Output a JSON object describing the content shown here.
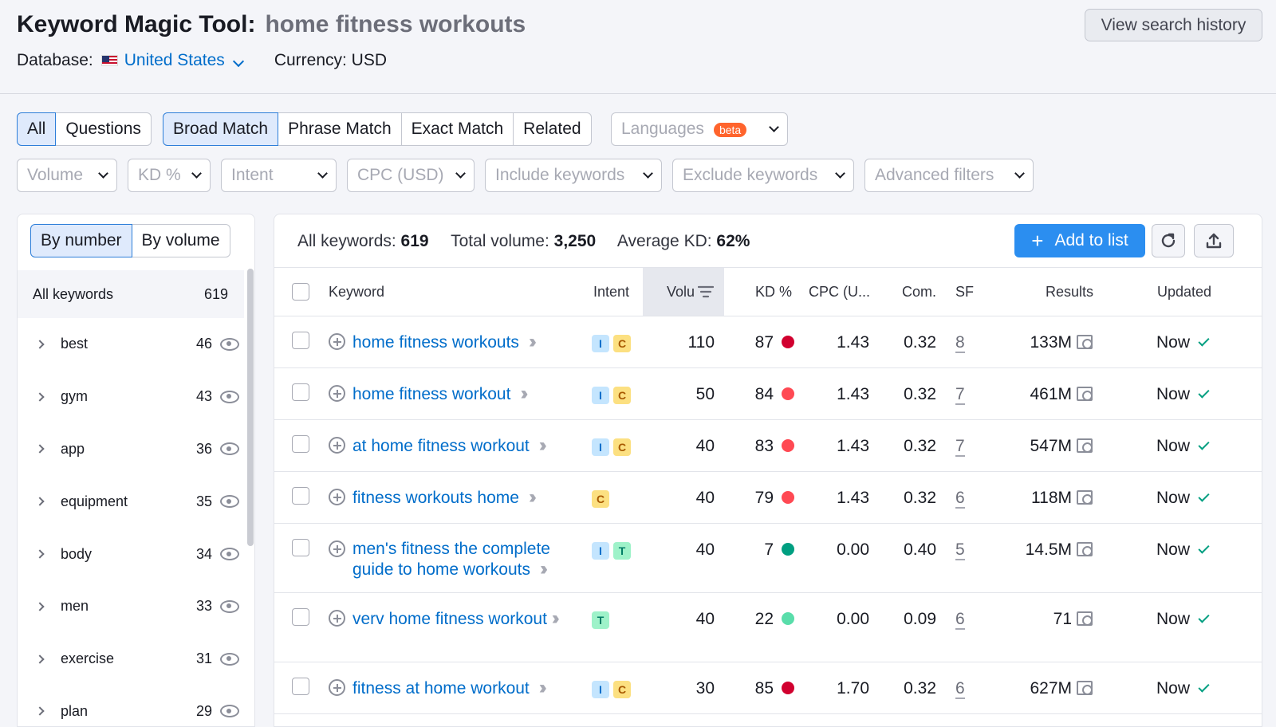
{
  "header": {
    "title": "Keyword Magic Tool:",
    "query": "home fitness workouts",
    "database_label": "Database:",
    "database_value": "United States",
    "currency": "Currency: USD",
    "history_button": "View search history"
  },
  "tabs": {
    "type": [
      "All",
      "Questions"
    ],
    "match": [
      "Broad Match",
      "Phrase Match",
      "Exact Match",
      "Related"
    ],
    "languages": "Languages",
    "beta": "beta"
  },
  "filters": [
    "Volume",
    "KD %",
    "Intent",
    "CPC (USD)",
    "Include keywords",
    "Exclude keywords",
    "Advanced filters"
  ],
  "sidebar": {
    "sort_tabs": [
      "By number",
      "By volume"
    ],
    "all_label": "All keywords",
    "all_count": "619",
    "groups": [
      {
        "name": "best",
        "count": "46"
      },
      {
        "name": "gym",
        "count": "43"
      },
      {
        "name": "app",
        "count": "36"
      },
      {
        "name": "equipment",
        "count": "35"
      },
      {
        "name": "body",
        "count": "34"
      },
      {
        "name": "men",
        "count": "33"
      },
      {
        "name": "exercise",
        "count": "31"
      },
      {
        "name": "plan",
        "count": "29"
      }
    ]
  },
  "summary": {
    "all_label": "All keywords:",
    "all_value": "619",
    "volume_label": "Total volume:",
    "volume_value": "3,250",
    "kd_label": "Average KD:",
    "kd_value": "62%",
    "add_button": "Add to list"
  },
  "columns": [
    "Keyword",
    "Intent",
    "Volu",
    "KD %",
    "CPC (U...",
    "Com.",
    "SF",
    "Results",
    "Updated"
  ],
  "colors": {
    "accent": "#2b8ef0",
    "link": "#006dca",
    "kd_red": "#d1002f",
    "kd_orange_red": "#ff4953",
    "kd_green_dark": "#009f81",
    "kd_green_light": "#59ddaa"
  },
  "rows": [
    {
      "keyword": "home fitness workouts",
      "intent": [
        "I",
        "C"
      ],
      "volume": "110",
      "kd": "87",
      "kd_color": "#d1002f",
      "cpc": "1.43",
      "com": "0.32",
      "sf": "8",
      "results": "133M",
      "updated": "Now"
    },
    {
      "keyword": "home fitness workout",
      "intent": [
        "I",
        "C"
      ],
      "volume": "50",
      "kd": "84",
      "kd_color": "#ff4953",
      "cpc": "1.43",
      "com": "0.32",
      "sf": "7",
      "results": "461M",
      "updated": "Now"
    },
    {
      "keyword": "at home fitness workout",
      "intent": [
        "I",
        "C"
      ],
      "volume": "40",
      "kd": "83",
      "kd_color": "#ff4953",
      "cpc": "1.43",
      "com": "0.32",
      "sf": "7",
      "results": "547M",
      "updated": "Now"
    },
    {
      "keyword": "fitness workouts home",
      "intent": [
        "C"
      ],
      "volume": "40",
      "kd": "79",
      "kd_color": "#ff4953",
      "cpc": "1.43",
      "com": "0.32",
      "sf": "6",
      "results": "118M",
      "updated": "Now"
    },
    {
      "keyword": "men's fitness the complete guide to home workouts",
      "intent": [
        "I",
        "T"
      ],
      "volume": "40",
      "kd": "7",
      "kd_color": "#009f81",
      "cpc": "0.00",
      "com": "0.40",
      "sf": "5",
      "results": "14.5M",
      "updated": "Now"
    },
    {
      "keyword": "verv home fitness workout",
      "intent": [
        "T"
      ],
      "volume": "40",
      "kd": "22",
      "kd_color": "#59ddaa",
      "cpc": "0.00",
      "com": "0.09",
      "sf": "6",
      "results": "71",
      "updated": "Now"
    },
    {
      "keyword": "fitness at home workout",
      "intent": [
        "I",
        "C"
      ],
      "volume": "30",
      "kd": "85",
      "kd_color": "#d1002f",
      "cpc": "1.70",
      "com": "0.32",
      "sf": "6",
      "results": "627M",
      "updated": "Now"
    }
  ]
}
